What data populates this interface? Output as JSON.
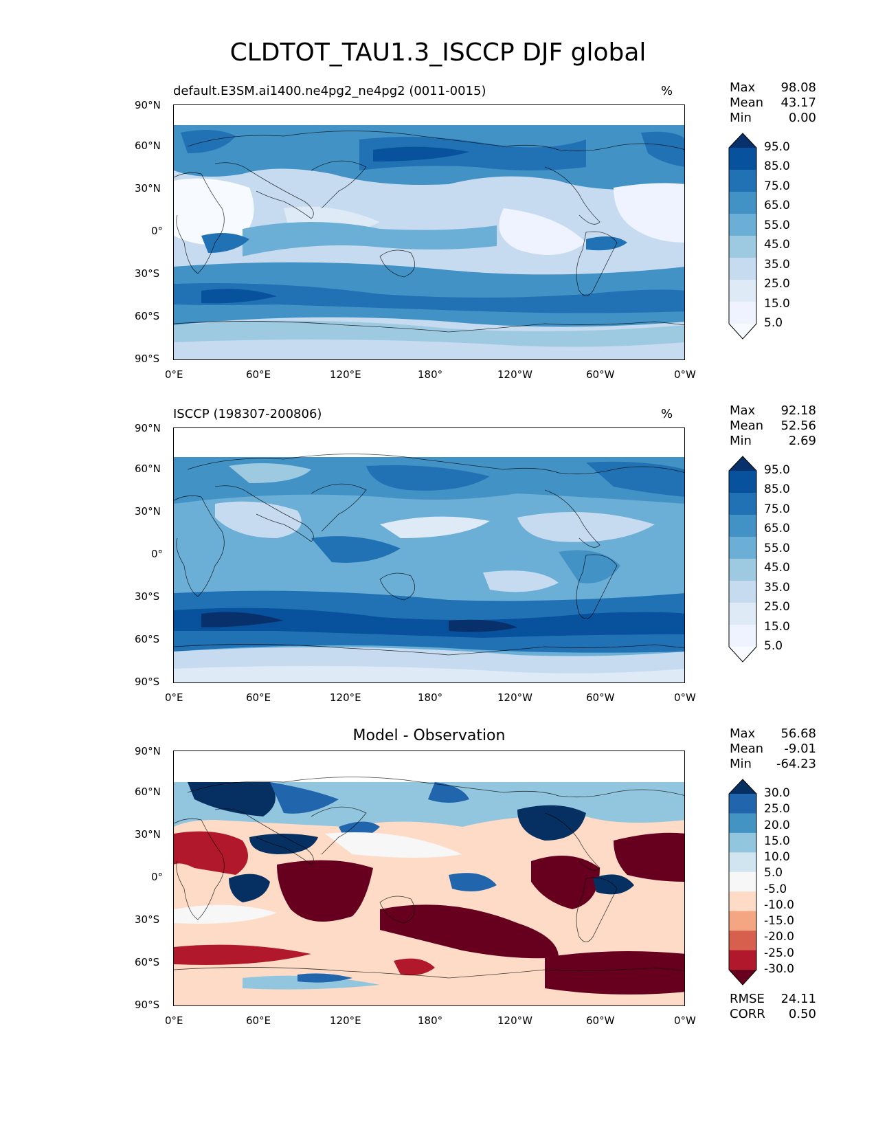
{
  "title": "CLDTOT_TAU1.3_ISCCP DJF global",
  "xticks": [
    "0°E",
    "60°E",
    "120°E",
    "180°",
    "120°W",
    "60°W",
    "0°W"
  ],
  "yticks": [
    "90°N",
    "60°N",
    "30°N",
    "0°",
    "30°S",
    "60°S",
    "90°S"
  ],
  "panels": [
    {
      "title_left": "default.E3SM.ai1400.ne4pg2_ne4pg2 (0011-0015)",
      "units": "%",
      "stats": {
        "max_label": "Max",
        "max": "98.08",
        "mean_label": "Mean",
        "mean": "43.17",
        "min_label": "Min",
        "min": "0.00"
      },
      "colorbar": {
        "labels": [
          "95.0",
          "85.0",
          "75.0",
          "65.0",
          "55.0",
          "45.0",
          "35.0",
          "25.0",
          "15.0",
          "5.0"
        ],
        "colors": [
          "#08306b",
          "#08519c",
          "#2171b5",
          "#4292c6",
          "#6baed6",
          "#9ecae1",
          "#c6dbef",
          "#deebf7",
          "#eff3ff",
          "#f7fbff"
        ]
      }
    },
    {
      "title_left": "ISCCP (198307-200806)",
      "units": "%",
      "stats": {
        "max_label": "Max",
        "max": "92.18",
        "mean_label": "Mean",
        "mean": "52.56",
        "min_label": "Min",
        "min": "2.69"
      },
      "colorbar": {
        "labels": [
          "95.0",
          "85.0",
          "75.0",
          "65.0",
          "55.0",
          "45.0",
          "35.0",
          "25.0",
          "15.0",
          "5.0"
        ],
        "colors": [
          "#08306b",
          "#08519c",
          "#2171b5",
          "#4292c6",
          "#6baed6",
          "#9ecae1",
          "#c6dbef",
          "#deebf7",
          "#eff3ff",
          "#f7fbff"
        ]
      }
    },
    {
      "title_center": "Model - Observation",
      "stats": {
        "max_label": "Max",
        "max": "56.68",
        "mean_label": "Mean",
        "mean": "-9.01",
        "min_label": "Min",
        "min": "-64.23"
      },
      "metrics": {
        "rmse_label": "RMSE",
        "rmse": "24.11",
        "corr_label": "CORR",
        "corr": "0.50"
      },
      "colorbar": {
        "labels": [
          "30.0",
          "25.0",
          "20.0",
          "15.0",
          "10.0",
          "5.0",
          "-5.0",
          "-10.0",
          "-15.0",
          "-20.0",
          "-25.0",
          "-30.0"
        ],
        "colors": [
          "#053061",
          "#2166ac",
          "#4393c3",
          "#92c5de",
          "#d1e5f0",
          "#f7f7f7",
          "#fddbc7",
          "#f4a582",
          "#d6604d",
          "#b2182b",
          "#67001f"
        ]
      }
    }
  ],
  "chart_data": [
    {
      "type": "heatmap",
      "title": "default.E3SM.ai1400.ne4pg2_ne4pg2 (0011-0015)",
      "units": "%",
      "x": [
        "0°E",
        "60°E",
        "120°E",
        "180°",
        "120°W",
        "60°W",
        "0°W"
      ],
      "y": [
        "90°N",
        "60°N",
        "30°N",
        "0°",
        "30°S",
        "60°S",
        "90°S"
      ],
      "max": 98.08,
      "mean": 43.17,
      "min": 0.0,
      "levels": [
        5,
        15,
        25,
        35,
        45,
        55,
        65,
        75,
        85,
        95
      ]
    },
    {
      "type": "heatmap",
      "title": "ISCCP (198307-200806)",
      "units": "%",
      "x": [
        "0°E",
        "60°E",
        "120°E",
        "180°",
        "120°W",
        "60°W",
        "0°W"
      ],
      "y": [
        "90°N",
        "60°N",
        "30°N",
        "0°",
        "30°S",
        "60°S",
        "90°S"
      ],
      "max": 92.18,
      "mean": 52.56,
      "min": 2.69,
      "levels": [
        5,
        15,
        25,
        35,
        45,
        55,
        65,
        75,
        85,
        95
      ]
    },
    {
      "type": "heatmap",
      "title": "Model - Observation",
      "x": [
        "0°E",
        "60°E",
        "120°E",
        "180°",
        "120°W",
        "60°W",
        "0°W"
      ],
      "y": [
        "90°N",
        "60°N",
        "30°N",
        "0°",
        "30°S",
        "60°S",
        "90°S"
      ],
      "max": 56.68,
      "mean": -9.01,
      "min": -64.23,
      "rmse": 24.11,
      "corr": 0.5,
      "levels": [
        -30,
        -25,
        -20,
        -15,
        -10,
        -5,
        5,
        10,
        15,
        20,
        25,
        30
      ]
    }
  ]
}
